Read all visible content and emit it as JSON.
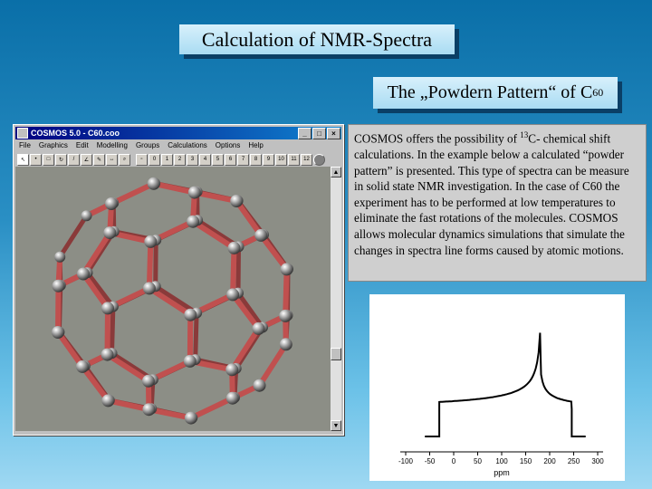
{
  "slide": {
    "title": "Calculation of NMR-Spectra",
    "subtitle_main": "The „Powdern Pattern“ of C",
    "subtitle_sub": "60"
  },
  "window": {
    "title": "COSMOS 5.0 - C60.coo",
    "buttons": [
      "_",
      "□",
      "×"
    ],
    "menu": [
      "File",
      "Graphics",
      "Edit",
      "Modelling",
      "Groups",
      "Calculations",
      "Options",
      "Help"
    ],
    "toolbar_numbers": [
      "0",
      "1",
      "2",
      "3",
      "4",
      "5",
      "6",
      "7",
      "8",
      "9",
      "10",
      "11",
      "12"
    ]
  },
  "description": {
    "p1": "COSMOS offers the possibility of ",
    "sup": "13",
    "p2": "C- chemical shift calculations.  In the example below a calculated “powder pattern” is presented.  This type of spectra can  be measure in solid state NMR investigation. In the case  of C60 the experiment has to be performed at low temperatures to eliminate the fast rotations of the molecules. COSMOS allows molecular dynamics simulations that  simulate the changes in spectra line forms caused by atomic motions."
  },
  "spectrum": {
    "xlabel": "ppm",
    "ticks": [
      "-100",
      "-50",
      "0",
      "50",
      "100",
      "150",
      "200",
      "250",
      "300"
    ],
    "colors": {
      "line": "#000000",
      "bond": "#c0504f"
    }
  }
}
